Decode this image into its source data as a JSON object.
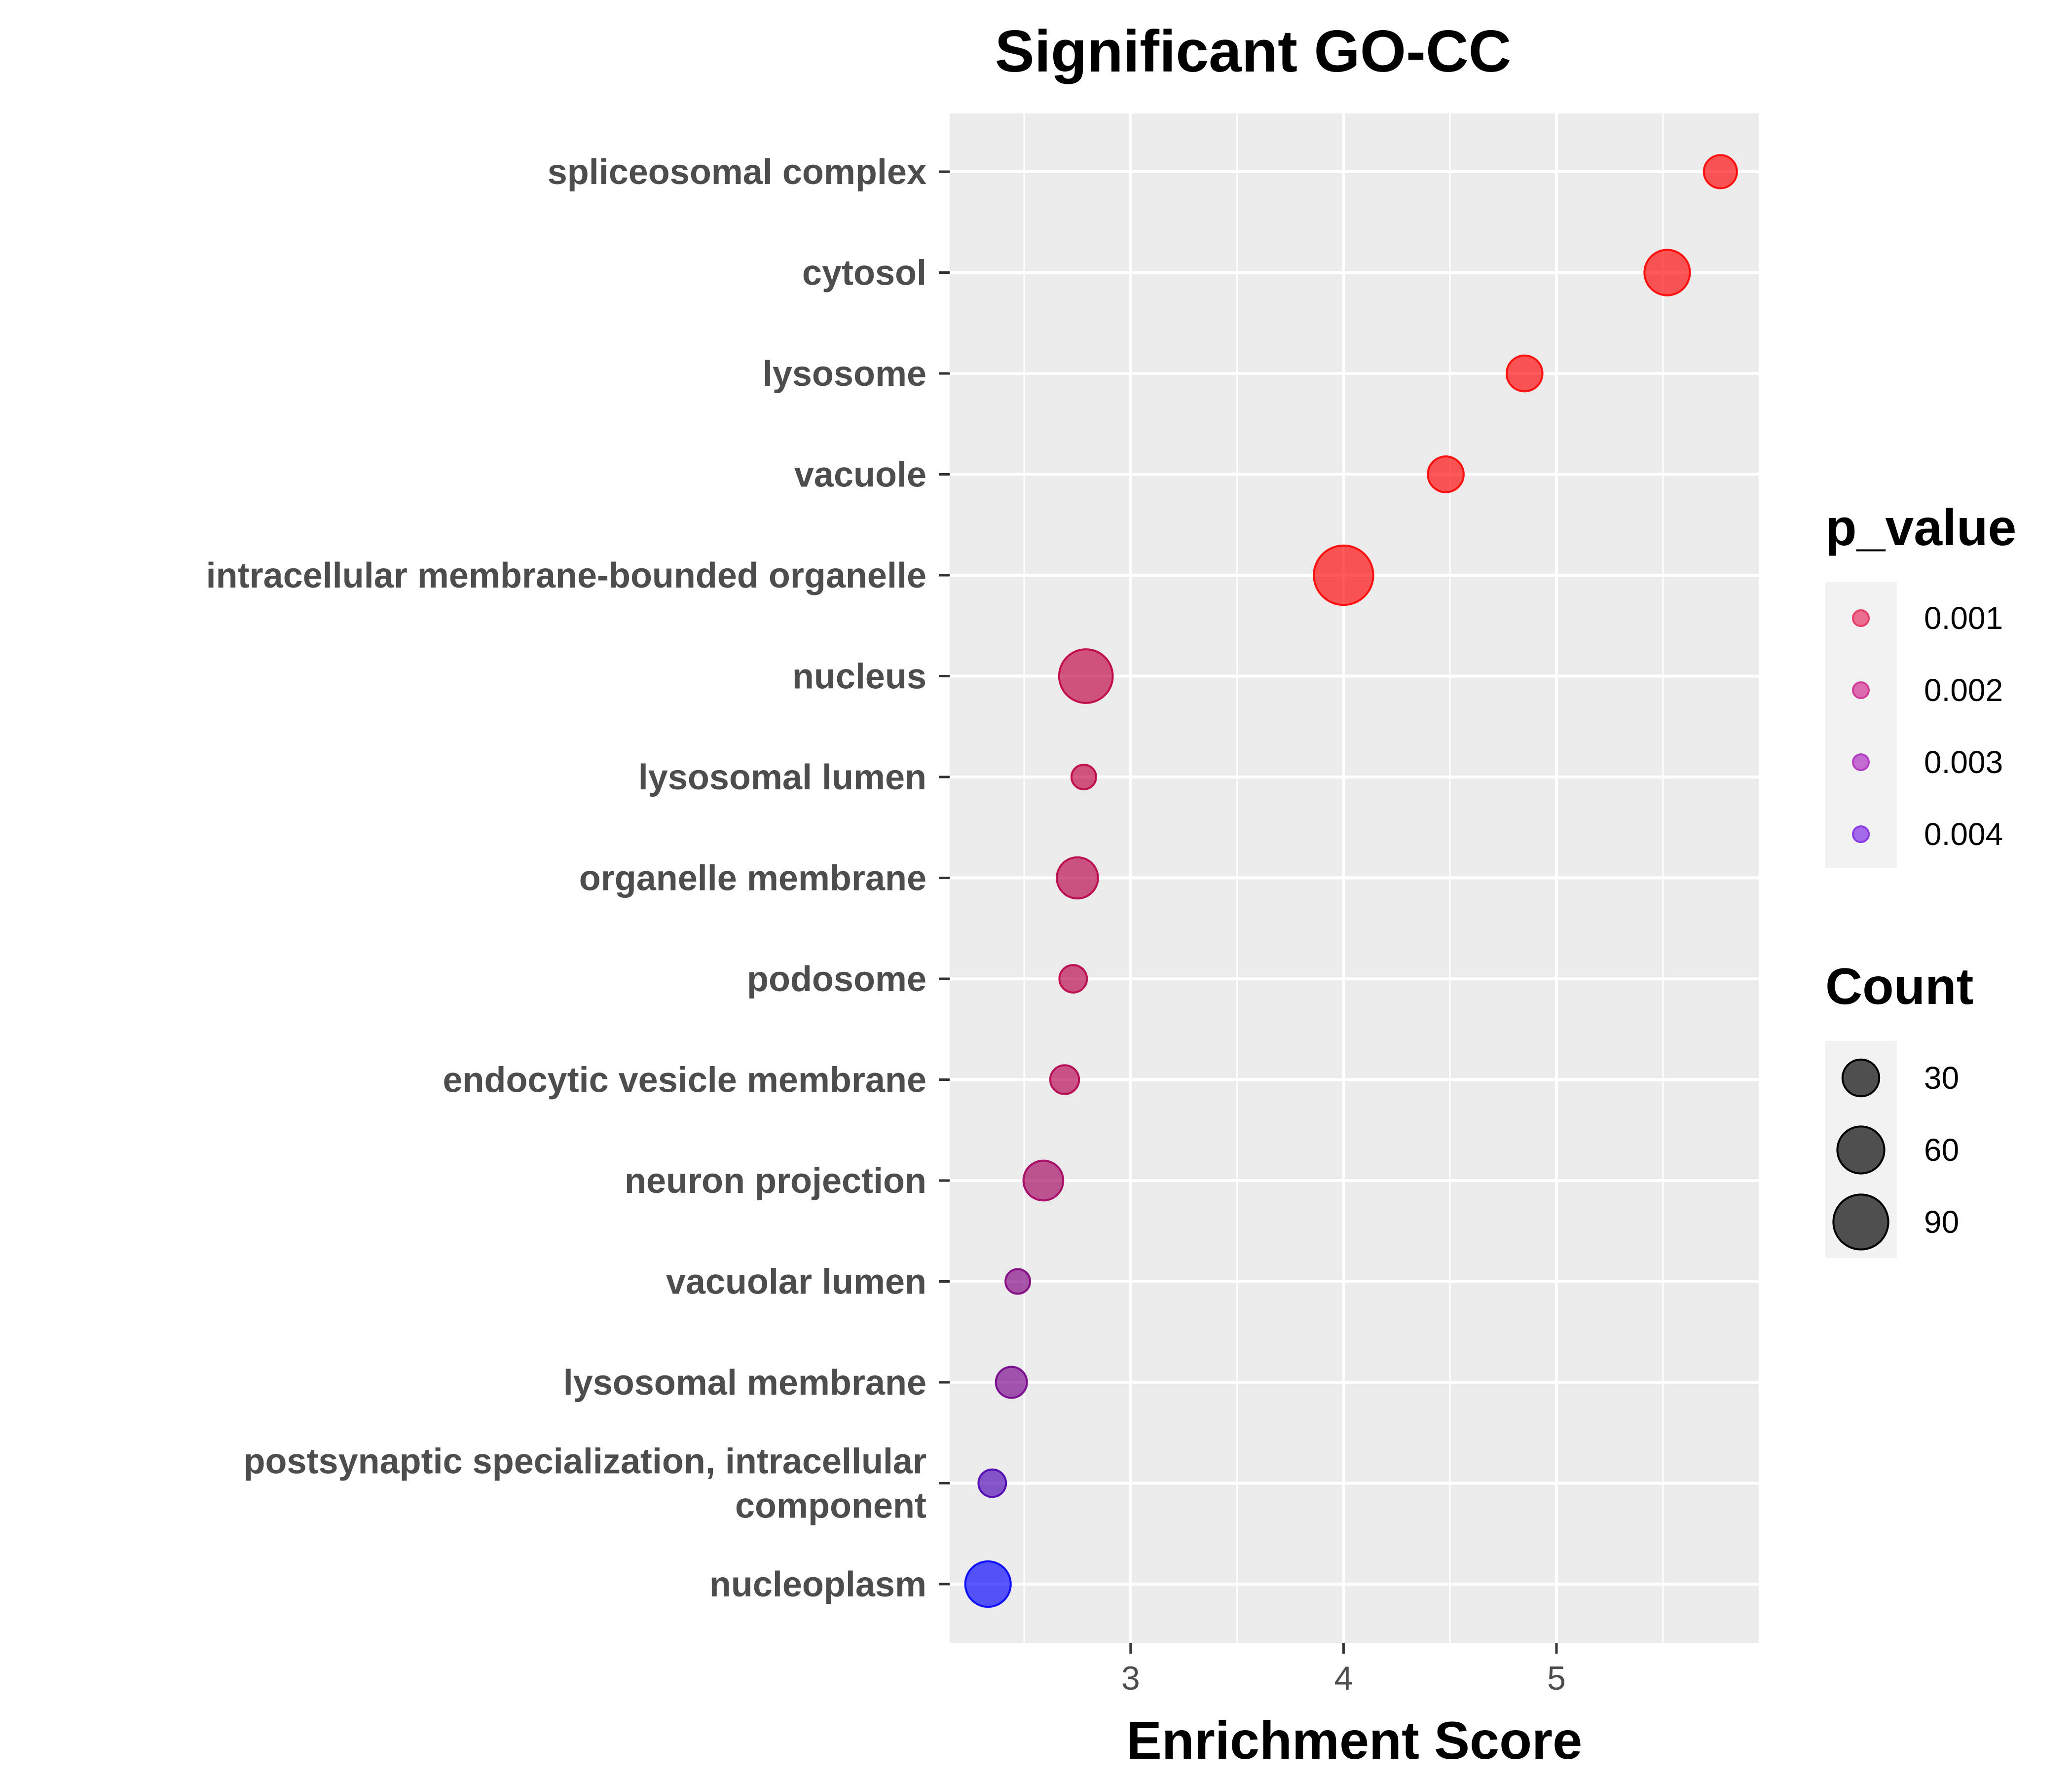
{
  "chart_data": {
    "type": "scatter",
    "title": "Significant GO-CC",
    "xlabel": "Enrichment Score",
    "ylabel": "",
    "xlim": [
      2.15,
      5.95
    ],
    "x_ticks": [
      3,
      4,
      5
    ],
    "x_tick_labels": [
      "3",
      "4",
      "5"
    ],
    "grid": true,
    "legend_position": "right",
    "categories": [
      "spliceosomal complex",
      "cytosol",
      "lysosome",
      "vacuole",
      "intracellular membrane-bounded organelle",
      "nucleus",
      "lysosomal lumen",
      "organelle membrane",
      "podosome",
      "endocytic vesicle membrane",
      "neuron projection",
      "vacuolar lumen",
      "lysosomal membrane",
      "postsynaptic specialization, intracellular component",
      "nucleoplasm"
    ],
    "category_label_lines": [
      [
        "spliceosomal complex"
      ],
      [
        "cytosol"
      ],
      [
        "lysosome"
      ],
      [
        "vacuole"
      ],
      [
        "intracellular membrane-bounded organelle"
      ],
      [
        "nucleus"
      ],
      [
        "lysosomal lumen"
      ],
      [
        "organelle membrane"
      ],
      [
        "podosome"
      ],
      [
        "endocytic vesicle membrane"
      ],
      [
        "neuron projection"
      ],
      [
        "vacuolar lumen"
      ],
      [
        "lysosomal membrane"
      ],
      [
        "postsynaptic specialization, intracellular",
        "component"
      ],
      [
        "nucleoplasm"
      ]
    ],
    "points": [
      {
        "term": "spliceosomal complex",
        "enrichment": 5.77,
        "count": 22,
        "p_value": 0.0005
      },
      {
        "term": "cytosol",
        "enrichment": 5.52,
        "count": 55,
        "p_value": 0.0005
      },
      {
        "term": "lysosome",
        "enrichment": 4.85,
        "count": 28,
        "p_value": 0.0005
      },
      {
        "term": "vacuole",
        "enrichment": 4.48,
        "count": 28,
        "p_value": 0.0005
      },
      {
        "term": "intracellular membrane-bounded organelle",
        "enrichment": 4.0,
        "count": 110,
        "p_value": 0.0005
      },
      {
        "term": "nucleus",
        "enrichment": 2.79,
        "count": 85,
        "p_value": 0.0016
      },
      {
        "term": "lysosomal lumen",
        "enrichment": 2.78,
        "count": 8,
        "p_value": 0.0016
      },
      {
        "term": "organelle membrane",
        "enrichment": 2.75,
        "count": 42,
        "p_value": 0.0017
      },
      {
        "term": "podosome",
        "enrichment": 2.73,
        "count": 12,
        "p_value": 0.0017
      },
      {
        "term": "endocytic vesicle membrane",
        "enrichment": 2.69,
        "count": 14,
        "p_value": 0.0018
      },
      {
        "term": "neuron projection",
        "enrichment": 2.59,
        "count": 38,
        "p_value": 0.0021
      },
      {
        "term": "vacuolar lumen",
        "enrichment": 2.47,
        "count": 8,
        "p_value": 0.0027
      },
      {
        "term": "lysosomal membrane",
        "enrichment": 2.44,
        "count": 18,
        "p_value": 0.0029
      },
      {
        "term": "postsynaptic specialization, intracellular component",
        "enrichment": 2.35,
        "count": 12,
        "p_value": 0.0036
      },
      {
        "term": "nucleoplasm",
        "enrichment": 2.33,
        "count": 55,
        "p_value": 0.0049
      }
    ],
    "legend_p_value": {
      "title": "p_value",
      "entries": [
        {
          "label": "0.001",
          "value": 0.001,
          "color": "#e8416e"
        },
        {
          "label": "0.002",
          "value": 0.002,
          "color": "#d43d99"
        },
        {
          "label": "0.003",
          "value": 0.003,
          "color": "#b33ec4"
        },
        {
          "label": "0.004",
          "value": 0.004,
          "color": "#8a3ee4"
        }
      ]
    },
    "legend_count": {
      "title": "Count",
      "entries": [
        {
          "label": "30",
          "value": 30
        },
        {
          "label": "60",
          "value": 60
        },
        {
          "label": "90",
          "value": 90
        }
      ]
    },
    "color_scale": {
      "low": "#ff0000",
      "high": "#0000ff",
      "min": 0.0005,
      "max": 0.0049
    },
    "point_opacity": 0.65,
    "colors": {
      "panel_background": "#ebebeb",
      "grid_line": "#ffffff",
      "axis_text": "#4d4d4d",
      "count_legend_fill": "#333333"
    }
  }
}
